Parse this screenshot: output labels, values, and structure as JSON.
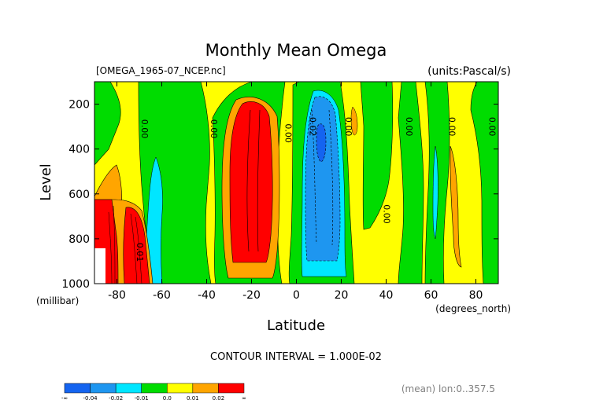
{
  "chart_data": {
    "type": "heatmap",
    "title": "Monthly Mean Omega",
    "file_label": "[OMEGA_1965-07_NCEP.nc]",
    "units_label": "(units:Pascal/s)",
    "xlabel": "Latitude",
    "x_unit": "(degrees_north)",
    "ylabel": "Level",
    "y_unit": "(millibar)",
    "xlim": [
      -90,
      90
    ],
    "ylim": [
      1000,
      100
    ],
    "x_ticks": [
      -80,
      -60,
      -40,
      -20,
      0,
      20,
      40,
      60,
      80
    ],
    "y_ticks": [
      200,
      400,
      600,
      800,
      1000
    ],
    "contour_interval_text": "CONTOUR INTERVAL = 1.000E-02",
    "footer_text": "(mean) lon:0..357.5",
    "contour_labels": [
      {
        "text": "0.00",
        "x": -69,
        "y": 310
      },
      {
        "text": "0.00",
        "x": -38,
        "y": 310
      },
      {
        "text": "0.00",
        "x": -5,
        "y": 330
      },
      {
        "text": "0.02",
        "x": 6,
        "y": 300
      },
      {
        "text": "0.00",
        "x": 22,
        "y": 300
      },
      {
        "text": "0.00",
        "x": 49,
        "y": 300
      },
      {
        "text": "0.00",
        "x": 68,
        "y": 300
      },
      {
        "text": "0.00",
        "x": 86,
        "y": 300
      },
      {
        "text": "0.00",
        "x": 39,
        "y": 690
      },
      {
        "text": "0.01",
        "x": -71,
        "y": 860
      }
    ],
    "colorbar": {
      "colors": [
        "#1464f0",
        "#1e96f0",
        "#00e6ff",
        "#00dc00",
        "#ffff00",
        "#ffa500",
        "#ff0000"
      ],
      "labels": [
        "-∞",
        "-0.04",
        "-0.02",
        "-0.01",
        "0.0",
        "0.01",
        "0.02",
        "∞"
      ]
    },
    "regions": [
      {
        "value": 0.02,
        "color": "#ff0000",
        "desc": "strong ascent near 20S",
        "x_range": [
          -30,
          -12
        ],
        "y_range": [
          180,
          920
        ]
      },
      {
        "value": 0.02,
        "color": "#ff0000",
        "desc": "strong ascent near 75S-80S",
        "x_range": [
          -86,
          -68
        ],
        "y_range": [
          620,
          1000
        ]
      },
      {
        "value": -0.02,
        "color": "#1e96f0",
        "desc": "descent near 10N",
        "x_range": [
          3,
          20
        ],
        "y_range": [
          130,
          920
        ]
      }
    ]
  }
}
